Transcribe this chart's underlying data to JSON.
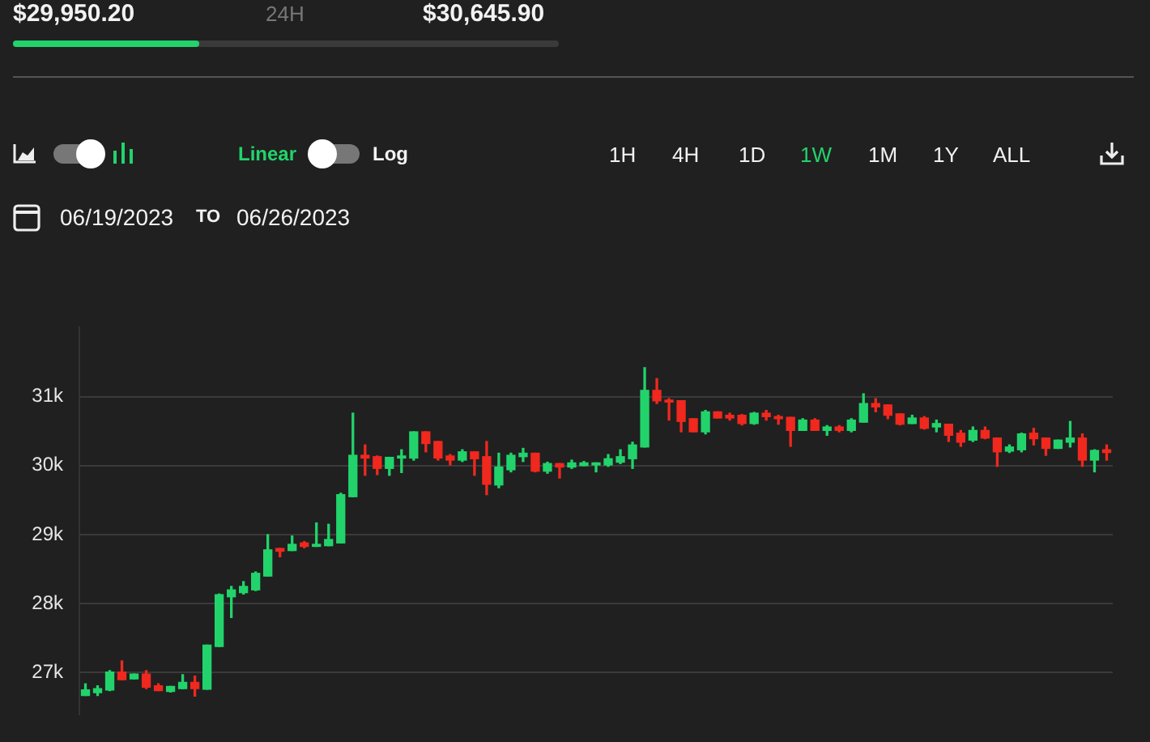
{
  "chart_data": {
    "type": "candlestick",
    "annotations": [
      "$29,950.20",
      "24H",
      "$30,645.90",
      "Linear",
      "Log",
      "1H",
      "4H",
      "1D",
      "1W",
      "1M",
      "1Y",
      "ALL",
      "06/19/2023",
      "TO",
      "06/26/2023"
    ],
    "categories": [
      null,
      null,
      null,
      null,
      null,
      null,
      null,
      null,
      null,
      null,
      null,
      null,
      null,
      null,
      null,
      null,
      null,
      null,
      null,
      null,
      null,
      null,
      null,
      null,
      null,
      null,
      null,
      null,
      null,
      null,
      null,
      null,
      null,
      null,
      null,
      null,
      null,
      null,
      null,
      null,
      null,
      null,
      null,
      null,
      null,
      null,
      null,
      null,
      null,
      null,
      null,
      null,
      null,
      null,
      null,
      null,
      null,
      null,
      null,
      null,
      null,
      null,
      null,
      null,
      null,
      null,
      null,
      null,
      null,
      null,
      null,
      null,
      null,
      null,
      null,
      null,
      null,
      null,
      null,
      null,
      null,
      null,
      null,
      null,
      null
    ],
    "ohlc": [
      [
        26670,
        26840,
        26670,
        26750
      ],
      [
        26710,
        26810,
        26670,
        26770
      ],
      [
        26750,
        27030,
        26740,
        27010
      ],
      [
        27010,
        27170,
        26900,
        26900
      ],
      [
        26910,
        26980,
        26910,
        26980
      ],
      [
        26980,
        27030,
        26770,
        26790
      ],
      [
        26810,
        26840,
        26740,
        26740
      ],
      [
        26730,
        26800,
        26720,
        26800
      ],
      [
        26770,
        26970,
        26770,
        26860
      ],
      [
        26860,
        26950,
        26660,
        26770
      ],
      [
        26760,
        27400,
        26760,
        27400
      ],
      [
        27380,
        28140,
        27380,
        28130
      ],
      [
        28100,
        28250,
        27800,
        28200
      ],
      [
        28160,
        28320,
        28140,
        28250
      ],
      [
        28200,
        28460,
        28190,
        28440
      ],
      [
        28400,
        29000,
        28400,
        28780
      ],
      [
        28800,
        28800,
        28680,
        28760
      ],
      [
        28770,
        28980,
        28770,
        28860
      ],
      [
        28880,
        28900,
        28810,
        28830
      ],
      [
        28830,
        29170,
        28830,
        28860
      ],
      [
        28840,
        29150,
        28840,
        28930
      ],
      [
        28880,
        29600,
        28880,
        29580
      ],
      [
        29550,
        30760,
        29550,
        30150
      ],
      [
        30150,
        30300,
        29860,
        30110
      ],
      [
        30130,
        30140,
        29870,
        29960
      ],
      [
        29960,
        30120,
        29860,
        30120
      ],
      [
        30110,
        30230,
        29900,
        30140
      ],
      [
        30110,
        30490,
        30080,
        30490
      ],
      [
        30490,
        30490,
        30200,
        30320
      ],
      [
        30350,
        30350,
        30080,
        30110
      ],
      [
        30140,
        30160,
        30010,
        30080
      ],
      [
        30080,
        30230,
        30060,
        30200
      ],
      [
        30200,
        30200,
        29860,
        30100
      ],
      [
        30130,
        30350,
        29580,
        29730
      ],
      [
        29720,
        30180,
        29680,
        29980
      ],
      [
        29940,
        30180,
        29910,
        30150
      ],
      [
        30130,
        30250,
        30060,
        30180
      ],
      [
        30180,
        30180,
        29910,
        29920
      ],
      [
        29920,
        30050,
        29890,
        30030
      ],
      [
        30030,
        30030,
        29820,
        29980
      ],
      [
        29980,
        30080,
        29960,
        30040
      ],
      [
        30000,
        30060,
        30000,
        30040
      ],
      [
        30010,
        30040,
        29910,
        30040
      ],
      [
        30010,
        30160,
        29990,
        30100
      ],
      [
        30050,
        30230,
        30030,
        30130
      ],
      [
        30100,
        30340,
        29960,
        30300
      ],
      [
        30270,
        31420,
        30270,
        31090
      ],
      [
        31090,
        31260,
        30900,
        30940
      ],
      [
        30950,
        30970,
        30660,
        30920
      ],
      [
        30940,
        30940,
        30490,
        30640
      ],
      [
        30680,
        30680,
        30490,
        30490
      ],
      [
        30490,
        30800,
        30460,
        30780
      ],
      [
        30780,
        30780,
        30690,
        30690
      ],
      [
        30730,
        30760,
        30660,
        30690
      ],
      [
        30730,
        30740,
        30590,
        30610
      ],
      [
        30610,
        30770,
        30600,
        30760
      ],
      [
        30760,
        30800,
        30660,
        30710
      ],
      [
        30710,
        30730,
        30600,
        30680
      ],
      [
        30700,
        30700,
        30280,
        30510
      ],
      [
        30510,
        30680,
        30510,
        30660
      ],
      [
        30660,
        30680,
        30510,
        30510
      ],
      [
        30510,
        30580,
        30440,
        30560
      ],
      [
        30560,
        30580,
        30490,
        30510
      ],
      [
        30510,
        30680,
        30490,
        30660
      ],
      [
        30630,
        31040,
        30630,
        30900
      ],
      [
        30900,
        30970,
        30780,
        30850
      ],
      [
        30880,
        30880,
        30680,
        30730
      ],
      [
        30750,
        30750,
        30590,
        30600
      ],
      [
        30610,
        30730,
        30610,
        30690
      ],
      [
        30690,
        30710,
        30530,
        30540
      ],
      [
        30560,
        30660,
        30490,
        30610
      ],
      [
        30600,
        30600,
        30350,
        30440
      ],
      [
        30470,
        30510,
        30280,
        30340
      ],
      [
        30370,
        30560,
        30350,
        30510
      ],
      [
        30510,
        30560,
        30390,
        30400
      ],
      [
        30400,
        30400,
        29990,
        30200
      ],
      [
        30210,
        30300,
        30190,
        30270
      ],
      [
        30230,
        30470,
        30200,
        30460
      ],
      [
        30470,
        30540,
        30300,
        30390
      ],
      [
        30400,
        30400,
        30150,
        30250
      ],
      [
        30250,
        30370,
        30250,
        30370
      ],
      [
        30340,
        30640,
        30270,
        30400
      ],
      [
        30400,
        30460,
        29990,
        30080
      ],
      [
        30080,
        30230,
        29910,
        30220
      ],
      [
        30230,
        30300,
        30080,
        30190
      ]
    ],
    "colors": [
      "#22d36b",
      "#22d36b",
      "#22d36b",
      "#f0281e",
      "#22d36b",
      "#f0281e",
      "#f0281e",
      "#22d36b",
      "#22d36b",
      "#f0281e",
      "#22d36b",
      "#22d36b",
      "#22d36b",
      "#22d36b",
      "#22d36b",
      "#22d36b",
      "#f0281e",
      "#22d36b",
      "#f0281e",
      "#22d36b",
      "#22d36b",
      "#22d36b",
      "#22d36b",
      "#f0281e",
      "#f0281e",
      "#22d36b",
      "#22d36b",
      "#22d36b",
      "#f0281e",
      "#f0281e",
      "#f0281e",
      "#22d36b",
      "#f0281e",
      "#f0281e",
      "#22d36b",
      "#22d36b",
      "#22d36b",
      "#f0281e",
      "#22d36b",
      "#f0281e",
      "#22d36b",
      "#22d36b",
      "#22d36b",
      "#22d36b",
      "#22d36b",
      "#22d36b",
      "#22d36b",
      "#f0281e",
      "#f0281e",
      "#f0281e",
      "#f0281e",
      "#22d36b",
      "#f0281e",
      "#f0281e",
      "#f0281e",
      "#22d36b",
      "#f0281e",
      "#f0281e",
      "#f0281e",
      "#22d36b",
      "#f0281e",
      "#22d36b",
      "#f0281e",
      "#22d36b",
      "#22d36b",
      "#f0281e",
      "#f0281e",
      "#f0281e",
      "#22d36b",
      "#f0281e",
      "#22d36b",
      "#f0281e",
      "#f0281e",
      "#22d36b",
      "#f0281e",
      "#f0281e",
      "#22d36b",
      "#22d36b",
      "#f0281e",
      "#f0281e",
      "#22d36b",
      "#22d36b",
      "#f0281e",
      "#22d36b",
      "#f0281e"
    ],
    "ylim": [
      26400,
      32000
    ],
    "yticks": [
      {
        "value": 27000,
        "label": "27k"
      },
      {
        "value": 28000,
        "label": "28k"
      },
      {
        "value": 29000,
        "label": "29k"
      },
      {
        "value": 30000,
        "label": "30k"
      },
      {
        "value": 31000,
        "label": "31k"
      }
    ],
    "grid": "y",
    "tick_labels": "y",
    "legend": false
  }
}
